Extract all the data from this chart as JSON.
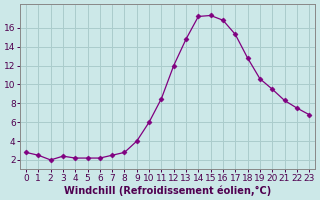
{
  "x": [
    0,
    1,
    2,
    3,
    4,
    5,
    6,
    7,
    8,
    9,
    10,
    11,
    12,
    13,
    14,
    15,
    16,
    17,
    18,
    19,
    20,
    21,
    22,
    23
  ],
  "y": [
    2.8,
    2.5,
    2.0,
    2.4,
    2.2,
    2.2,
    2.2,
    2.5,
    2.8,
    4.0,
    6.0,
    8.5,
    12.0,
    14.8,
    17.2,
    17.3,
    16.8,
    15.3,
    12.8,
    10.6,
    9.5,
    8.3,
    7.5,
    6.8
  ],
  "xlabel": "Windchill (Refroidissement éolien,°C)",
  "xticks": [
    0,
    1,
    2,
    3,
    4,
    5,
    6,
    7,
    8,
    9,
    10,
    11,
    12,
    13,
    14,
    15,
    16,
    17,
    18,
    19,
    20,
    21,
    22,
    23
  ],
  "xtick_labels": [
    "0",
    "1",
    "2",
    "3",
    "4",
    "5",
    "6",
    "7",
    "8",
    "9",
    "10",
    "11",
    "12",
    "13",
    "14",
    "15",
    "16",
    "17",
    "18",
    "19",
    "20",
    "21",
    "22",
    "23"
  ],
  "yticks": [
    2,
    4,
    6,
    8,
    10,
    12,
    14,
    16
  ],
  "ylim": [
    1.0,
    18.5
  ],
  "xlim": [
    -0.5,
    23.5
  ],
  "line_color": "#800080",
  "marker": "D",
  "marker_size": 2.5,
  "bg_color": "#cce8e8",
  "grid_color": "#aacccc",
  "xlabel_fontsize": 7,
  "tick_fontsize": 6.5
}
